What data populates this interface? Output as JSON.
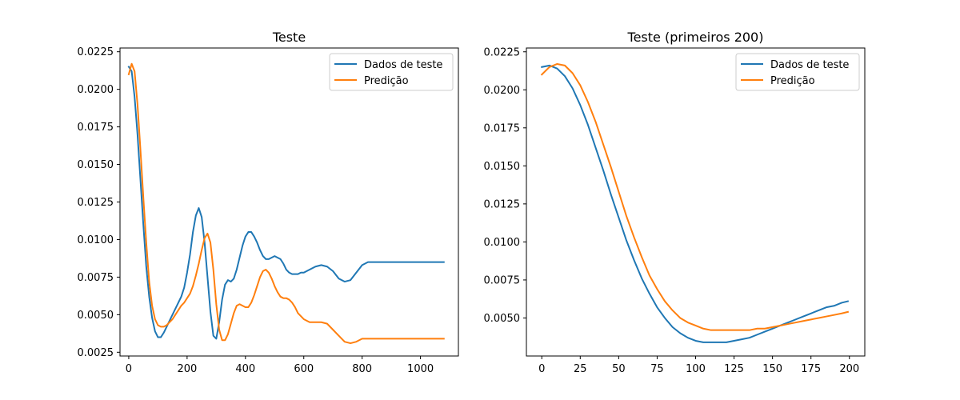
{
  "chart_data": [
    {
      "type": "line",
      "title": "Teste",
      "xlabel": "",
      "ylabel": "",
      "xlim": [
        -30,
        1130
      ],
      "ylim": [
        0.00225,
        0.02275
      ],
      "xticks": [
        0,
        200,
        400,
        600,
        800,
        1000
      ],
      "xtick_labels": [
        "0",
        "200",
        "400",
        "600",
        "800",
        "1000"
      ],
      "yticks": [
        0.0025,
        0.005,
        0.0075,
        0.01,
        0.0125,
        0.015,
        0.0175,
        0.02,
        0.0225
      ],
      "ytick_labels": [
        "0.0025",
        "0.0050",
        "0.0075",
        "0.0100",
        "0.0125",
        "0.0150",
        "0.0175",
        "0.0200",
        "0.0225"
      ],
      "grid": false,
      "legend_position": "top-right",
      "series": [
        {
          "name": "Dados de teste",
          "color": "#1f77b4",
          "x": [
            0,
            10,
            20,
            30,
            40,
            50,
            60,
            70,
            80,
            90,
            100,
            110,
            120,
            130,
            140,
            150,
            160,
            170,
            180,
            190,
            200,
            210,
            220,
            230,
            240,
            250,
            260,
            270,
            280,
            290,
            300,
            310,
            320,
            330,
            340,
            350,
            360,
            370,
            380,
            390,
            400,
            410,
            420,
            430,
            440,
            450,
            460,
            470,
            480,
            490,
            500,
            510,
            520,
            530,
            540,
            550,
            560,
            570,
            580,
            590,
            600,
            610,
            620,
            640,
            660,
            680,
            700,
            720,
            740,
            760,
            780,
            800,
            820,
            840,
            860,
            880,
            900,
            920,
            940,
            960,
            980,
            1000,
            1020,
            1040,
            1060,
            1080
          ],
          "y": [
            0.0215,
            0.0212,
            0.0195,
            0.017,
            0.014,
            0.011,
            0.0082,
            0.0062,
            0.0048,
            0.0039,
            0.0035,
            0.0035,
            0.0038,
            0.0042,
            0.0046,
            0.005,
            0.0054,
            0.0058,
            0.0062,
            0.0068,
            0.0078,
            0.009,
            0.0105,
            0.0116,
            0.0121,
            0.0115,
            0.0098,
            0.0075,
            0.0052,
            0.0036,
            0.0034,
            0.0045,
            0.006,
            0.007,
            0.0073,
            0.0072,
            0.0074,
            0.008,
            0.0088,
            0.0096,
            0.0102,
            0.0105,
            0.0105,
            0.0102,
            0.0098,
            0.0093,
            0.0089,
            0.0087,
            0.0087,
            0.0088,
            0.0089,
            0.0088,
            0.0087,
            0.0084,
            0.008,
            0.0078,
            0.0077,
            0.0077,
            0.0077,
            0.0078,
            0.0078,
            0.0079,
            0.008,
            0.0082,
            0.0083,
            0.0082,
            0.0079,
            0.0074,
            0.0072,
            0.0073,
            0.0078,
            0.0083,
            0.0085,
            0.0085,
            0.0085,
            0.0085,
            0.0085,
            0.0085,
            0.0085,
            0.0085,
            0.0085,
            0.0085,
            0.0085,
            0.0085,
            0.0085,
            0.0085
          ]
        },
        {
          "name": "Predição",
          "color": "#ff7f0e",
          "x": [
            0,
            10,
            20,
            30,
            40,
            50,
            60,
            70,
            80,
            90,
            100,
            110,
            120,
            130,
            140,
            150,
            160,
            170,
            180,
            190,
            200,
            210,
            220,
            230,
            240,
            250,
            260,
            270,
            280,
            290,
            300,
            310,
            320,
            330,
            340,
            350,
            360,
            370,
            380,
            390,
            400,
            410,
            420,
            430,
            440,
            450,
            460,
            470,
            480,
            490,
            500,
            510,
            520,
            530,
            540,
            550,
            560,
            570,
            580,
            590,
            600,
            610,
            620,
            640,
            660,
            680,
            700,
            720,
            740,
            760,
            780,
            800,
            820,
            840,
            860,
            880,
            900,
            920,
            940,
            960,
            980,
            1000,
            1020,
            1040,
            1060,
            1080
          ],
          "y": [
            0.021,
            0.0217,
            0.0212,
            0.019,
            0.016,
            0.0128,
            0.0098,
            0.0072,
            0.0056,
            0.0047,
            0.0043,
            0.0042,
            0.0042,
            0.0043,
            0.0045,
            0.0047,
            0.005,
            0.0053,
            0.0056,
            0.0058,
            0.0061,
            0.0064,
            0.0069,
            0.0076,
            0.0084,
            0.0093,
            0.0101,
            0.0104,
            0.0098,
            0.008,
            0.0057,
            0.004,
            0.0033,
            0.0033,
            0.0037,
            0.0044,
            0.0051,
            0.0056,
            0.0057,
            0.0056,
            0.0055,
            0.0055,
            0.0058,
            0.0063,
            0.0069,
            0.0075,
            0.0079,
            0.008,
            0.0078,
            0.0074,
            0.0069,
            0.0065,
            0.0062,
            0.0061,
            0.0061,
            0.006,
            0.0058,
            0.0055,
            0.0051,
            0.0049,
            0.0047,
            0.0046,
            0.0045,
            0.0045,
            0.0045,
            0.0044,
            0.004,
            0.0036,
            0.0032,
            0.0031,
            0.0032,
            0.0034,
            0.0034,
            0.0034,
            0.0034,
            0.0034,
            0.0034,
            0.0034,
            0.0034,
            0.0034,
            0.0034,
            0.0034,
            0.0034,
            0.0034,
            0.0034,
            0.0034
          ]
        }
      ]
    },
    {
      "type": "line",
      "title": "Teste (primeiros 200)",
      "xlabel": "",
      "ylabel": "",
      "xlim": [
        -10,
        210
      ],
      "ylim": [
        0.0025,
        0.02275
      ],
      "xticks": [
        0,
        25,
        50,
        75,
        100,
        125,
        150,
        175,
        200
      ],
      "xtick_labels": [
        "0",
        "25",
        "50",
        "75",
        "100",
        "125",
        "150",
        "175",
        "200"
      ],
      "yticks": [
        0.005,
        0.0075,
        0.01,
        0.0125,
        0.015,
        0.0175,
        0.02,
        0.0225
      ],
      "ytick_labels": [
        "0.0050",
        "0.0075",
        "0.0100",
        "0.0125",
        "0.0150",
        "0.0175",
        "0.0200",
        "0.0225"
      ],
      "grid": false,
      "legend_position": "top-right",
      "series": [
        {
          "name": "Dados de teste",
          "color": "#1f77b4",
          "x": [
            0,
            5,
            10,
            15,
            20,
            25,
            30,
            35,
            40,
            45,
            50,
            55,
            60,
            65,
            70,
            75,
            80,
            85,
            90,
            95,
            100,
            105,
            110,
            115,
            120,
            125,
            130,
            135,
            140,
            145,
            150,
            155,
            160,
            165,
            170,
            175,
            180,
            185,
            190,
            195,
            199
          ],
          "y": [
            0.0215,
            0.0216,
            0.0214,
            0.0209,
            0.0201,
            0.019,
            0.0177,
            0.0162,
            0.0147,
            0.0131,
            0.0116,
            0.0101,
            0.0088,
            0.0076,
            0.0066,
            0.0057,
            0.005,
            0.0044,
            0.004,
            0.0037,
            0.0035,
            0.0034,
            0.0034,
            0.0034,
            0.0034,
            0.0035,
            0.0036,
            0.0037,
            0.0039,
            0.0041,
            0.0043,
            0.0045,
            0.0047,
            0.0049,
            0.0051,
            0.0053,
            0.0055,
            0.0057,
            0.0058,
            0.006,
            0.0061
          ]
        },
        {
          "name": "Predição",
          "color": "#ff7f0e",
          "x": [
            0,
            5,
            10,
            15,
            20,
            25,
            30,
            35,
            40,
            45,
            50,
            55,
            60,
            65,
            70,
            75,
            80,
            85,
            90,
            95,
            100,
            105,
            110,
            115,
            120,
            125,
            130,
            135,
            140,
            145,
            150,
            155,
            160,
            165,
            170,
            175,
            180,
            185,
            190,
            195,
            199
          ],
          "y": [
            0.021,
            0.0215,
            0.0217,
            0.0216,
            0.0211,
            0.0203,
            0.0192,
            0.0179,
            0.0164,
            0.0149,
            0.0133,
            0.0117,
            0.0103,
            0.009,
            0.0078,
            0.0069,
            0.0061,
            0.0055,
            0.005,
            0.0047,
            0.0045,
            0.0043,
            0.0042,
            0.0042,
            0.0042,
            0.0042,
            0.0042,
            0.0042,
            0.0043,
            0.0043,
            0.0044,
            0.0045,
            0.0046,
            0.0047,
            0.0048,
            0.0049,
            0.005,
            0.0051,
            0.0052,
            0.0053,
            0.0054
          ]
        }
      ]
    }
  ]
}
